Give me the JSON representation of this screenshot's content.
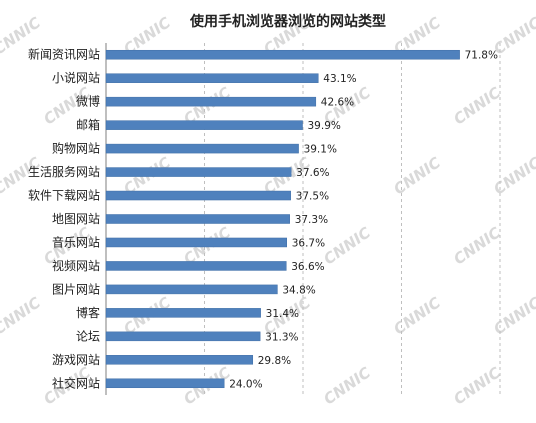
{
  "chart_data": {
    "type": "bar",
    "orientation": "horizontal",
    "title": "使用手机浏览器浏览的网站类型",
    "categories": [
      "新闻资讯网站",
      "小说网站",
      "微博",
      "邮箱",
      "购物网站",
      "生活服务网站",
      "软件下载网站",
      "地图网站",
      "音乐网站",
      "视频网站",
      "图片网站",
      "博客",
      "论坛",
      "游戏网站",
      "社交网站"
    ],
    "values": [
      71.8,
      43.1,
      42.6,
      39.9,
      39.1,
      37.6,
      37.5,
      37.3,
      36.7,
      36.6,
      34.8,
      31.4,
      31.3,
      29.8,
      24.0
    ],
    "value_labels": [
      "71.8%",
      "43.1%",
      "42.6%",
      "39.9%",
      "39.1%",
      "37.6%",
      "37.5%",
      "37.3%",
      "36.7%",
      "36.6%",
      "34.8%",
      "31.4%",
      "31.3%",
      "29.8%",
      "24.0%"
    ],
    "xlim": [
      0,
      80
    ],
    "grid": "vertical-dashed",
    "bar_color": "#4f81bd",
    "watermark": "CNNIC"
  }
}
